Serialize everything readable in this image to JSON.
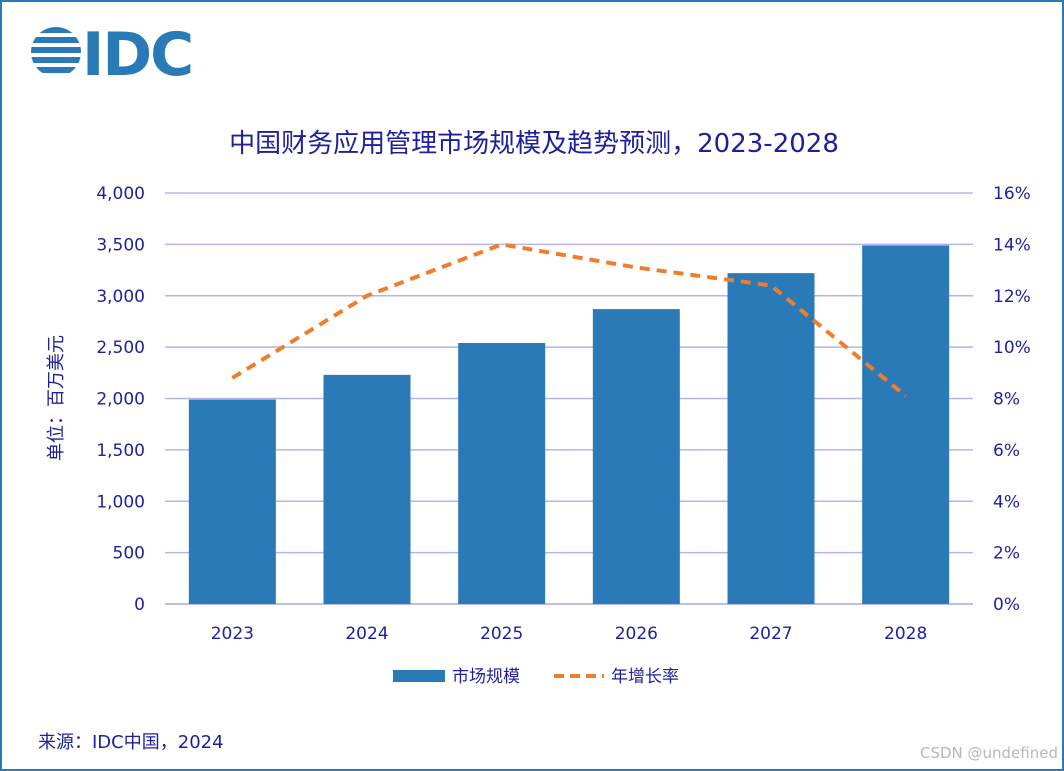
{
  "logo": {
    "text": "IDC"
  },
  "chart_data": {
    "type": "bar",
    "title": "中国财务应用管理市场规模及趋势预测，2023-2028",
    "categories": [
      "2023",
      "2024",
      "2025",
      "2026",
      "2027",
      "2028"
    ],
    "series": [
      {
        "name": "市场规模",
        "type": "bar",
        "axis": "left",
        "values": [
          1990,
          2230,
          2540,
          2870,
          3220,
          3490
        ],
        "color": "#2a7ab8"
      },
      {
        "name": "年增长率",
        "type": "line",
        "style": "dashed",
        "axis": "right",
        "values": [
          8.8,
          12.0,
          14.0,
          13.1,
          12.4,
          8.1
        ],
        "color": "#f07d2a"
      }
    ],
    "ylabel": "单位：百万美元",
    "ylim": [
      0,
      4000
    ],
    "yticks": [
      "0",
      "500",
      "1,000",
      "1,500",
      "2,000",
      "2,500",
      "3,000",
      "3,500",
      "4,000"
    ],
    "y2lim": [
      0,
      16
    ],
    "y2ticks": [
      "0%",
      "2%",
      "4%",
      "6%",
      "8%",
      "10%",
      "12%",
      "14%",
      "16%"
    ],
    "grid": true,
    "legend": "bottom"
  },
  "source": "来源：IDC中国，2024",
  "watermark": "CSDN @undefined"
}
